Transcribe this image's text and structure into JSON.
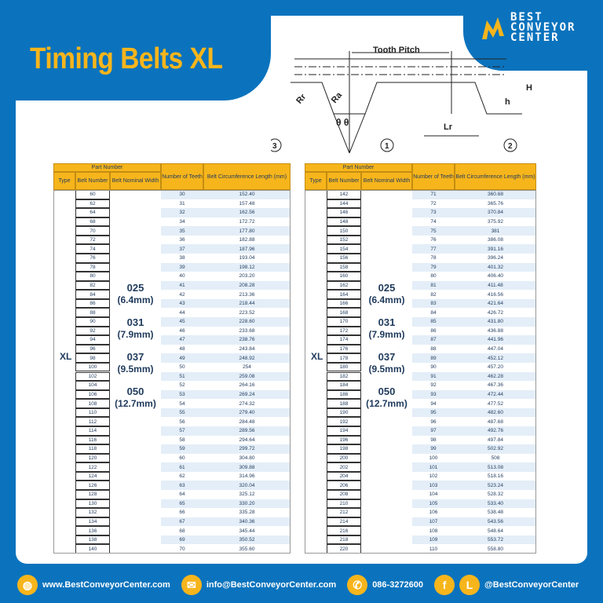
{
  "title": "Timing Belts XL",
  "logo": {
    "line1": "BEST",
    "line2": "CONVEYOR",
    "line3": "CENTER"
  },
  "diagram": {
    "tooth_pitch": "Tooth  Pitch",
    "rr": "Rr",
    "ra": "Ra",
    "theta": "θ θ",
    "lr": "Lr",
    "h": "h",
    "H": "H",
    "callouts": [
      "1",
      "2",
      "3"
    ]
  },
  "table_headers": {
    "part_number": "Part Number",
    "type": "Type",
    "belt_number": "Belt Number",
    "nominal_width": "Belt Nominal Width",
    "teeth": "Number of Teeth",
    "length": "Belt Circumference Length (mm)"
  },
  "type": "XL",
  "widths": [
    {
      "code": "025",
      "mm": "(6.4mm)"
    },
    {
      "code": "031",
      "mm": "(7.9mm)"
    },
    {
      "code": "037",
      "mm": "(9.5mm)"
    },
    {
      "code": "050",
      "mm": "(12.7mm)"
    }
  ],
  "left_rows": [
    [
      "60",
      "30",
      "152.40"
    ],
    [
      "62",
      "31",
      "157.48"
    ],
    [
      "64",
      "32",
      "162.56"
    ],
    [
      "68",
      "34",
      "172.72"
    ],
    [
      "70",
      "35",
      "177.80"
    ],
    [
      "72",
      "36",
      "182.88"
    ],
    [
      "74",
      "37",
      "187.96"
    ],
    [
      "76",
      "38",
      "193.04"
    ],
    [
      "78",
      "39",
      "198.12"
    ],
    [
      "80",
      "40",
      "203.20"
    ],
    [
      "82",
      "41",
      "208.28"
    ],
    [
      "84",
      "42",
      "213.36"
    ],
    [
      "86",
      "43",
      "218.44"
    ],
    [
      "88",
      "44",
      "223.52"
    ],
    [
      "90",
      "45",
      "228.60"
    ],
    [
      "92",
      "46",
      "233.68"
    ],
    [
      "94",
      "47",
      "238.76"
    ],
    [
      "96",
      "48",
      "243.84"
    ],
    [
      "98",
      "49",
      "248.92"
    ],
    [
      "100",
      "50",
      "254"
    ],
    [
      "102",
      "51",
      "259.08"
    ],
    [
      "104",
      "52",
      "264.16"
    ],
    [
      "106",
      "53",
      "269.24"
    ],
    [
      "108",
      "54",
      "274.32"
    ],
    [
      "110",
      "55",
      "279.40"
    ],
    [
      "112",
      "56",
      "284.48"
    ],
    [
      "114",
      "57",
      "289.56"
    ],
    [
      "116",
      "58",
      "294.64"
    ],
    [
      "118",
      "59",
      "299.72"
    ],
    [
      "120",
      "60",
      "304.80"
    ],
    [
      "122",
      "61",
      "309.88"
    ],
    [
      "124",
      "62",
      "314.96"
    ],
    [
      "126",
      "63",
      "320.04"
    ],
    [
      "128",
      "64",
      "325.12"
    ],
    [
      "130",
      "65",
      "330.20"
    ],
    [
      "132",
      "66",
      "335.28"
    ],
    [
      "134",
      "67",
      "340.36"
    ],
    [
      "136",
      "68",
      "345.44"
    ],
    [
      "138",
      "69",
      "350.52"
    ],
    [
      "140",
      "70",
      "355.60"
    ]
  ],
  "right_rows": [
    [
      "142",
      "71",
      "360.68"
    ],
    [
      "144",
      "72",
      "365.76"
    ],
    [
      "146",
      "73",
      "370.84"
    ],
    [
      "148",
      "74",
      "375.92"
    ],
    [
      "150",
      "75",
      "381"
    ],
    [
      "152",
      "76",
      "386.08"
    ],
    [
      "154",
      "77",
      "391.16"
    ],
    [
      "156",
      "78",
      "396.24"
    ],
    [
      "158",
      "79",
      "401.32"
    ],
    [
      "160",
      "80",
      "406.40"
    ],
    [
      "162",
      "81",
      "411.48"
    ],
    [
      "164",
      "82",
      "416.56"
    ],
    [
      "166",
      "83",
      "421.64"
    ],
    [
      "168",
      "84",
      "426.72"
    ],
    [
      "170",
      "85",
      "431.80"
    ],
    [
      "172",
      "86",
      "436.88"
    ],
    [
      "174",
      "87",
      "441.96"
    ],
    [
      "176",
      "88",
      "447.04"
    ],
    [
      "178",
      "89",
      "452.12"
    ],
    [
      "180",
      "90",
      "457.20"
    ],
    [
      "182",
      "91",
      "462.28"
    ],
    [
      "184",
      "92",
      "467.36"
    ],
    [
      "186",
      "93",
      "472.44"
    ],
    [
      "188",
      "94",
      "477.52"
    ],
    [
      "190",
      "95",
      "482.60"
    ],
    [
      "192",
      "96",
      "487.68"
    ],
    [
      "194",
      "97",
      "492.76"
    ],
    [
      "196",
      "98",
      "497.84"
    ],
    [
      "198",
      "99",
      "502.92"
    ],
    [
      "200",
      "100",
      "508"
    ],
    [
      "202",
      "101",
      "513.08"
    ],
    [
      "204",
      "102",
      "518.16"
    ],
    [
      "206",
      "103",
      "523.24"
    ],
    [
      "208",
      "104",
      "528.32"
    ],
    [
      "210",
      "105",
      "533.40"
    ],
    [
      "212",
      "106",
      "538.48"
    ],
    [
      "214",
      "107",
      "543.56"
    ],
    [
      "216",
      "108",
      "548.64"
    ],
    [
      "218",
      "109",
      "553.72"
    ],
    [
      "220",
      "110",
      "558.80"
    ]
  ],
  "footer": {
    "website": "www.BestConveyorCenter.com",
    "email": "info@BestConveyorCenter.com",
    "phone": "086-3272600",
    "social": "@BestConveyorCenter",
    "line_letter": "L",
    "fb_letter": "f"
  },
  "colors": {
    "brand_blue": "#0b73bd",
    "accent": "#f7b51c"
  }
}
